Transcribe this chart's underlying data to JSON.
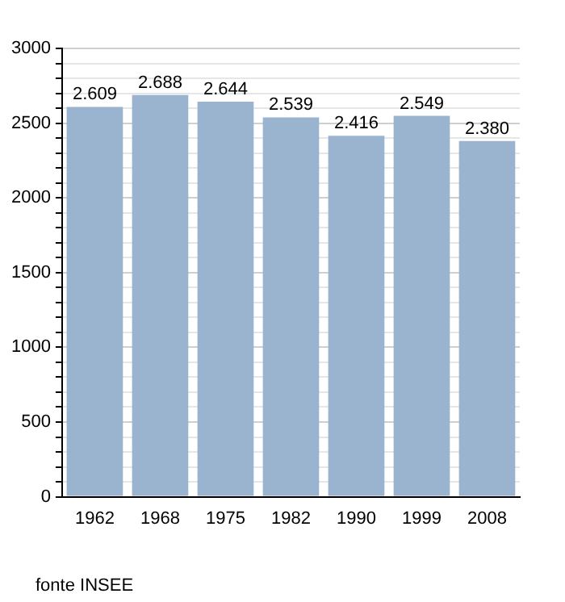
{
  "chart_data": {
    "type": "bar",
    "categories": [
      "1962",
      "1968",
      "1975",
      "1982",
      "1990",
      "1999",
      "2008"
    ],
    "values": [
      2609,
      2688,
      2644,
      2539,
      2416,
      2549,
      2380
    ],
    "color": "#9ab3cf",
    "value_labels": [
      "2.609",
      "2.688",
      "2.644",
      "2.539",
      "2.416",
      "2.549",
      "2.380"
    ],
    "ylim": [
      0,
      3000
    ],
    "yticks": [
      0,
      {
        "value": 100,
        "label": null
      },
      {
        "value": 200,
        "label": null
      },
      {
        "value": 300,
        "label": null
      },
      {
        "value": 400,
        "label": null
      },
      500,
      {
        "value": 600,
        "label": null
      },
      {
        "value": 700,
        "label": null
      },
      {
        "value": 800,
        "label": null
      },
      {
        "value": 900,
        "label": null
      },
      1000,
      {
        "value": 1100,
        "label": null
      },
      {
        "value": 1200,
        "label": null
      },
      {
        "value": 1300,
        "label": null
      },
      {
        "value": 1400,
        "label": null
      },
      1500,
      {
        "value": 1600,
        "label": null
      },
      {
        "value": 1700,
        "label": null
      },
      {
        "value": 1800,
        "label": null
      },
      {
        "value": 1900,
        "label": null
      },
      2000,
      {
        "value": 2100,
        "label": null
      },
      {
        "value": 2200,
        "label": null
      },
      {
        "value": 2300,
        "label": null
      },
      {
        "value": 2400,
        "label": null
      },
      2500,
      {
        "value": 2600,
        "label": null
      },
      {
        "value": 2700,
        "label": null
      },
      {
        "value": 2800,
        "label": null
      },
      {
        "value": 2900,
        "label": null
      },
      3000
    ],
    "grid": "y",
    "legend": false,
    "annotations": [
      "fonte INSEE"
    ]
  }
}
